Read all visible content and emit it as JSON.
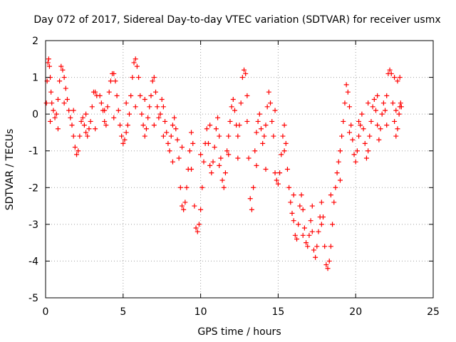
{
  "chart_data": {
    "type": "scatter",
    "title": "Day 072 of 2017, Sidereal Day-to-day VTEC variation (SDTVAR) for receiver usmx",
    "xlabel": "GPS time / hours",
    "ylabel": "SDTVAR / TECUs",
    "xlim": [
      0,
      25
    ],
    "ylim": [
      -5,
      2
    ],
    "x_ticks": [
      "0",
      "5",
      "10",
      "15",
      "20",
      "25"
    ],
    "y_ticks": [
      "-5",
      "-4",
      "-3",
      "-2",
      "-1",
      "0",
      "1",
      "2"
    ],
    "grid": true,
    "marker": "+",
    "series": [
      {
        "name": "SDTVAR",
        "color": "#ff0000",
        "points": [
          [
            0.05,
            0.3
          ],
          [
            0.1,
            0.9
          ],
          [
            0.15,
            1.4
          ],
          [
            0.2,
            1.5
          ],
          [
            0.25,
            1.3
          ],
          [
            0.3,
            1.0
          ],
          [
            0.35,
            0.6
          ],
          [
            0.4,
            0.3
          ],
          [
            0.5,
            0.1
          ],
          [
            0.6,
            -0.1
          ],
          [
            0.7,
            0.0
          ],
          [
            0.8,
            0.4
          ],
          [
            0.9,
            0.9
          ],
          [
            1.0,
            1.3
          ],
          [
            1.1,
            1.2
          ],
          [
            1.2,
            1.0
          ],
          [
            1.3,
            0.7
          ],
          [
            1.4,
            0.4
          ],
          [
            1.5,
            0.1
          ],
          [
            1.6,
            -0.1
          ],
          [
            1.7,
            -0.3
          ],
          [
            1.8,
            -0.6
          ],
          [
            1.9,
            -0.9
          ],
          [
            2.0,
            -1.1
          ],
          [
            2.1,
            -1.0
          ],
          [
            2.2,
            -0.6
          ],
          [
            2.3,
            -0.2
          ],
          [
            2.4,
            -0.1
          ],
          [
            2.5,
            -0.3
          ],
          [
            2.6,
            -0.5
          ],
          [
            2.7,
            -0.6
          ],
          [
            2.8,
            -0.4
          ],
          [
            2.9,
            -0.2
          ],
          [
            3.0,
            0.2
          ],
          [
            3.1,
            0.6
          ],
          [
            3.2,
            0.6
          ],
          [
            3.3,
            0.5
          ],
          [
            3.5,
            0.5
          ],
          [
            3.6,
            0.3
          ],
          [
            3.7,
            0.1
          ],
          [
            3.8,
            -0.2
          ],
          [
            3.9,
            -0.3
          ],
          [
            4.0,
            0.2
          ],
          [
            4.1,
            0.6
          ],
          [
            4.2,
            0.9
          ],
          [
            4.3,
            1.1
          ],
          [
            4.4,
            1.1
          ],
          [
            4.5,
            0.9
          ],
          [
            4.6,
            0.5
          ],
          [
            4.7,
            0.1
          ],
          [
            4.8,
            -0.3
          ],
          [
            4.9,
            -0.6
          ],
          [
            5.0,
            -0.8
          ],
          [
            5.1,
            -0.7
          ],
          [
            5.2,
            -0.5
          ],
          [
            5.3,
            -0.3
          ],
          [
            5.4,
            0.0
          ],
          [
            5.5,
            0.5
          ],
          [
            5.6,
            1.0
          ],
          [
            5.7,
            1.4
          ],
          [
            5.8,
            1.5
          ],
          [
            5.9,
            1.3
          ],
          [
            6.0,
            1.0
          ],
          [
            6.1,
            0.5
          ],
          [
            6.2,
            0.0
          ],
          [
            6.3,
            -0.3
          ],
          [
            6.4,
            -0.6
          ],
          [
            6.5,
            -0.4
          ],
          [
            6.6,
            -0.1
          ],
          [
            6.7,
            0.2
          ],
          [
            6.8,
            0.5
          ],
          [
            6.9,
            0.9
          ],
          [
            7.0,
            1.0
          ],
          [
            7.1,
            0.6
          ],
          [
            7.2,
            0.2
          ],
          [
            7.3,
            -0.1
          ],
          [
            7.4,
            0.0
          ],
          [
            7.5,
            0.4
          ],
          [
            7.6,
            0.2
          ],
          [
            7.7,
            -0.2
          ],
          [
            7.8,
            -0.5
          ],
          [
            7.9,
            -0.8
          ],
          [
            8.0,
            -1.0
          ],
          [
            8.1,
            -0.6
          ],
          [
            8.2,
            -0.3
          ],
          [
            8.3,
            -0.1
          ],
          [
            8.4,
            -0.4
          ],
          [
            8.5,
            -0.7
          ],
          [
            8.6,
            -1.2
          ],
          [
            8.7,
            -2.0
          ],
          [
            8.8,
            -2.5
          ],
          [
            8.9,
            -2.6
          ],
          [
            9.0,
            -2.4
          ],
          [
            9.1,
            -2.0
          ],
          [
            9.2,
            -1.5
          ],
          [
            9.3,
            -1.0
          ],
          [
            9.4,
            -0.5
          ],
          [
            9.5,
            -0.8
          ],
          [
            9.6,
            -2.5
          ],
          [
            9.7,
            -3.1
          ],
          [
            9.8,
            -3.2
          ],
          [
            9.9,
            -3.0
          ],
          [
            10.0,
            -2.6
          ],
          [
            10.1,
            -2.0
          ],
          [
            10.2,
            -1.3
          ],
          [
            10.3,
            -0.8
          ],
          [
            10.4,
            -0.4
          ],
          [
            10.5,
            -0.8
          ],
          [
            10.6,
            -1.4
          ],
          [
            10.7,
            -1.6
          ],
          [
            10.8,
            -1.3
          ],
          [
            10.9,
            -0.9
          ],
          [
            11.0,
            -0.4
          ],
          [
            11.1,
            -0.1
          ],
          [
            11.2,
            -0.6
          ],
          [
            11.3,
            -1.2
          ],
          [
            11.4,
            -1.8
          ],
          [
            11.5,
            -2.0
          ],
          [
            11.6,
            -1.6
          ],
          [
            11.7,
            -1.0
          ],
          [
            11.8,
            -0.6
          ],
          [
            11.9,
            -0.2
          ],
          [
            12.0,
            0.2
          ],
          [
            12.1,
            0.4
          ],
          [
            12.2,
            0.1
          ],
          [
            12.3,
            -0.3
          ],
          [
            12.4,
            -0.6
          ],
          [
            12.5,
            -0.3
          ],
          [
            12.6,
            0.3
          ],
          [
            12.7,
            1.0
          ],
          [
            12.8,
            1.2
          ],
          [
            12.9,
            1.1
          ],
          [
            13.0,
            -0.2
          ],
          [
            13.1,
            -1.2
          ],
          [
            13.2,
            -2.3
          ],
          [
            13.3,
            -2.6
          ],
          [
            13.4,
            -2.0
          ],
          [
            13.5,
            -1.0
          ],
          [
            13.6,
            -0.5
          ],
          [
            13.7,
            -0.2
          ],
          [
            13.8,
            0.0
          ],
          [
            13.9,
            -0.4
          ],
          [
            14.0,
            -0.8
          ],
          [
            14.1,
            -0.6
          ],
          [
            14.2,
            -0.3
          ],
          [
            14.3,
            0.2
          ],
          [
            14.4,
            0.6
          ],
          [
            14.5,
            0.3
          ],
          [
            14.6,
            -0.2
          ],
          [
            14.7,
            -0.6
          ],
          [
            14.8,
            -1.6
          ],
          [
            14.9,
            -1.8
          ],
          [
            15.0,
            -1.9
          ],
          [
            15.1,
            -1.6
          ],
          [
            15.2,
            -1.1
          ],
          [
            15.3,
            -0.6
          ],
          [
            15.4,
            -0.3
          ],
          [
            15.5,
            -0.8
          ],
          [
            15.6,
            -1.5
          ],
          [
            15.7,
            -2.0
          ],
          [
            15.8,
            -2.4
          ],
          [
            15.9,
            -2.7
          ],
          [
            16.0,
            -2.9
          ],
          [
            16.1,
            -3.3
          ],
          [
            16.2,
            -3.4
          ],
          [
            16.3,
            -3.0
          ],
          [
            16.4,
            -2.5
          ],
          [
            16.5,
            -2.2
          ],
          [
            16.6,
            -2.6
          ],
          [
            16.7,
            -3.1
          ],
          [
            16.8,
            -3.5
          ],
          [
            16.9,
            -3.6
          ],
          [
            17.0,
            -3.3
          ],
          [
            17.1,
            -2.9
          ],
          [
            17.2,
            -3.2
          ],
          [
            17.3,
            -3.7
          ],
          [
            17.4,
            -3.9
          ],
          [
            17.5,
            -3.6
          ],
          [
            17.6,
            -3.2
          ],
          [
            17.7,
            -2.8
          ],
          [
            17.8,
            -2.4
          ],
          [
            17.9,
            -2.8
          ],
          [
            18.0,
            -3.6
          ],
          [
            18.1,
            -4.1
          ],
          [
            18.2,
            -4.2
          ],
          [
            18.3,
            -4.0
          ],
          [
            18.4,
            -3.6
          ],
          [
            18.5,
            -3.0
          ],
          [
            18.6,
            -2.4
          ],
          [
            18.7,
            -2.0
          ],
          [
            18.8,
            -1.6
          ],
          [
            18.9,
            -1.3
          ],
          [
            19.0,
            -1.0
          ],
          [
            19.1,
            -0.6
          ],
          [
            19.2,
            -0.2
          ],
          [
            19.3,
            0.3
          ],
          [
            19.4,
            0.8
          ],
          [
            19.5,
            0.6
          ],
          [
            19.6,
            0.2
          ],
          [
            19.7,
            -0.3
          ],
          [
            19.8,
            -0.7
          ],
          [
            19.9,
            -1.1
          ],
          [
            20.0,
            -1.3
          ],
          [
            20.1,
            -1.0
          ],
          [
            20.2,
            -0.6
          ],
          [
            20.3,
            -0.3
          ],
          [
            20.4,
            0.0
          ],
          [
            20.5,
            -0.4
          ],
          [
            20.6,
            -0.8
          ],
          [
            20.7,
            -1.2
          ],
          [
            20.8,
            -1.0
          ],
          [
            20.9,
            -0.6
          ],
          [
            21.0,
            -0.2
          ],
          [
            21.1,
            0.2
          ],
          [
            21.2,
            0.4
          ],
          [
            21.3,
            0.1
          ],
          [
            21.4,
            -0.3
          ],
          [
            21.5,
            -0.7
          ],
          [
            21.6,
            -0.4
          ],
          [
            21.7,
            0.0
          ],
          [
            21.8,
            0.3
          ],
          [
            21.9,
            0.1
          ],
          [
            22.0,
            -0.3
          ],
          [
            22.1,
            1.1
          ],
          [
            22.2,
            1.2
          ],
          [
            22.3,
            1.1
          ],
          [
            22.4,
            0.3
          ],
          [
            22.5,
            -0.2
          ],
          [
            22.6,
            -0.6
          ],
          [
            22.7,
            -0.4
          ],
          [
            22.8,
            0.0
          ],
          [
            22.85,
            0.2
          ],
          [
            22.9,
            0.3
          ],
          [
            22.95,
            0.2
          ],
          [
            22.5,
            1.0
          ],
          [
            22.7,
            0.9
          ],
          [
            22.85,
            1.0
          ],
          [
            0.3,
            -0.2
          ],
          [
            0.8,
            -0.4
          ],
          [
            1.2,
            0.3
          ],
          [
            1.8,
            0.1
          ],
          [
            2.6,
            0.0
          ],
          [
            3.2,
            -0.4
          ],
          [
            3.8,
            0.1
          ],
          [
            4.4,
            -0.1
          ],
          [
            5.2,
            0.3
          ],
          [
            5.8,
            0.2
          ],
          [
            6.4,
            0.4
          ],
          [
            7.0,
            -0.3
          ],
          [
            7.6,
            -0.6
          ],
          [
            8.2,
            -1.3
          ],
          [
            8.8,
            -0.9
          ],
          [
            9.4,
            -1.5
          ],
          [
            10.0,
            -1.1
          ],
          [
            10.6,
            -0.3
          ],
          [
            11.2,
            -1.4
          ],
          [
            11.8,
            -1.1
          ],
          [
            12.4,
            -1.2
          ],
          [
            13.0,
            0.5
          ],
          [
            13.6,
            -1.4
          ],
          [
            14.2,
            -1.5
          ],
          [
            14.8,
            0.1
          ],
          [
            15.4,
            -1.0
          ],
          [
            16.0,
            -2.2
          ],
          [
            16.6,
            -3.3
          ],
          [
            17.2,
            -2.5
          ],
          [
            17.8,
            -3.0
          ],
          [
            18.4,
            -2.2
          ],
          [
            19.0,
            -1.8
          ],
          [
            19.6,
            -0.5
          ],
          [
            20.2,
            -0.2
          ],
          [
            20.8,
            0.3
          ],
          [
            21.4,
            0.5
          ],
          [
            22.0,
            0.5
          ],
          [
            22.6,
            0.1
          ]
        ]
      }
    ]
  }
}
